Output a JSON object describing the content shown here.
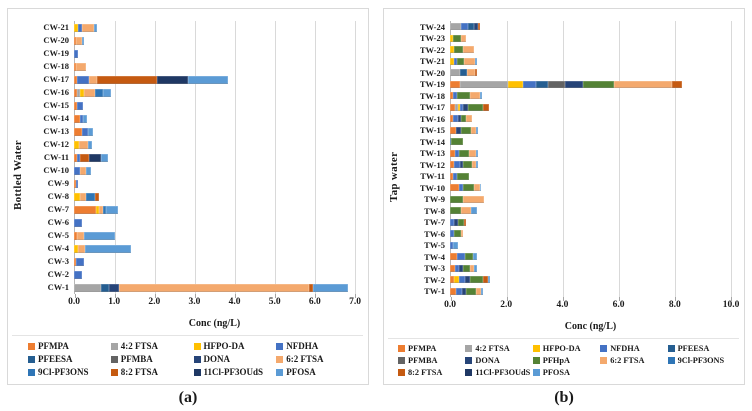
{
  "series_colors": {
    "PFMPA": "#ED7D31",
    "4:2 FTSA": "#A5A5A5",
    "HFPO-DA": "#FFC000",
    "NFDHA": "#4472C4",
    "PFEESA": "#255E91",
    "PFMBA": "#636363",
    "DONA": "#264478",
    "PFHpA": "#548235",
    "6:2 FTSA": "#F4A96D",
    "9Cl-PF3ONS": "#2E75B6",
    "8:2 FTSA": "#C55A11",
    "11Cl-PF3OUdS": "#1F3864",
    "PFOSA": "#5B9BD5"
  },
  "chart_data": [
    {
      "type": "bar",
      "orientation": "horizontal-stacked",
      "caption": "(a)",
      "y_axis_title": "Bottled Water",
      "x_axis_title": "Conc (ng/L)",
      "x_max": 7.0,
      "x_ticks": [
        "0.0",
        "1.0",
        "2.0",
        "3.0",
        "4.0",
        "5.0",
        "6.0",
        "7.0"
      ],
      "grid": "major-vertical",
      "legend_position": "bottom",
      "legend": [
        "PFMPA",
        "4:2 FTSA",
        "HFPO-DA",
        "NFDHA",
        "PFEESA",
        "PFMBA",
        "DONA",
        "6:2 FTSA",
        "9Cl-PF3ONS",
        "8:2 FTSA",
        "11Cl-PF3OUdS",
        "PFOSA"
      ],
      "bars": [
        {
          "label": "CW-21",
          "segments": [
            [
              "HFPO-DA",
              0.1
            ],
            [
              "NFDHA",
              0.1
            ],
            [
              "6:2 FTSA",
              0.3
            ],
            [
              "PFOSA",
              0.07
            ]
          ]
        },
        {
          "label": "CW-20",
          "segments": [
            [
              "PFMPA",
              0.05
            ],
            [
              "6:2 FTSA",
              0.14
            ],
            [
              "PFOSA",
              0.06
            ]
          ]
        },
        {
          "label": "CW-19",
          "segments": [
            [
              "NFDHA",
              0.09
            ]
          ]
        },
        {
          "label": "CW-18",
          "segments": [
            [
              "PFMPA",
              0.05
            ],
            [
              "6:2 FTSA",
              0.25
            ]
          ]
        },
        {
          "label": "CW-17",
          "segments": [
            [
              "PFMPA",
              0.08
            ],
            [
              "NFDHA",
              0.3
            ],
            [
              "6:2 FTSA",
              0.2
            ],
            [
              "8:2 FTSA",
              1.5
            ],
            [
              "11Cl-PF3OUdS",
              0.75
            ],
            [
              "PFOSA",
              1.0
            ]
          ]
        },
        {
          "label": "CW-16",
          "segments": [
            [
              "PFMPA",
              0.07
            ],
            [
              "4:2 FTSA",
              0.07
            ],
            [
              "HFPO-DA",
              0.1
            ],
            [
              "6:2 FTSA",
              0.28
            ],
            [
              "9Cl-PF3ONS",
              0.2
            ],
            [
              "PFOSA",
              0.2
            ]
          ]
        },
        {
          "label": "CW-15",
          "segments": [
            [
              "PFMPA",
              0.08
            ],
            [
              "NFDHA",
              0.15
            ]
          ]
        },
        {
          "label": "CW-14",
          "segments": [
            [
              "PFMPA",
              0.15
            ],
            [
              "NFDHA",
              0.08
            ],
            [
              "PFOSA",
              0.1
            ]
          ]
        },
        {
          "label": "CW-13",
          "segments": [
            [
              "PFMPA",
              0.2
            ],
            [
              "NFDHA",
              0.15
            ],
            [
              "PFOSA",
              0.13
            ]
          ]
        },
        {
          "label": "CW-12",
          "segments": [
            [
              "HFPO-DA",
              0.12
            ],
            [
              "6:2 FTSA",
              0.22
            ],
            [
              "PFOSA",
              0.12
            ]
          ]
        },
        {
          "label": "CW-11",
          "segments": [
            [
              "PFMPA",
              0.08
            ],
            [
              "NFDHA",
              0.08
            ],
            [
              "8:2 FTSA",
              0.22
            ],
            [
              "11Cl-PF3OUdS",
              0.3
            ],
            [
              "PFOSA",
              0.17
            ]
          ]
        },
        {
          "label": "CW-10",
          "segments": [
            [
              "NFDHA",
              0.15
            ],
            [
              "6:2 FTSA",
              0.15
            ],
            [
              "PFOSA",
              0.12
            ]
          ]
        },
        {
          "label": "CW-9",
          "segments": [
            [
              "PFMPA",
              0.05
            ],
            [
              "NFDHA",
              0.04
            ]
          ]
        },
        {
          "label": "CW-8",
          "segments": [
            [
              "HFPO-DA",
              0.15
            ],
            [
              "6:2 FTSA",
              0.15
            ],
            [
              "9Cl-PF3ONS",
              0.22
            ],
            [
              "8:2 FTSA",
              0.1
            ]
          ]
        },
        {
          "label": "CW-7",
          "segments": [
            [
              "PFMPA",
              0.55
            ],
            [
              "HFPO-DA",
              0.07
            ],
            [
              "6:2 FTSA",
              0.1
            ],
            [
              "9Cl-PF3ONS",
              0.08
            ],
            [
              "PFOSA",
              0.3
            ]
          ]
        },
        {
          "label": "CW-6",
          "segments": [
            [
              "NFDHA",
              0.2
            ]
          ]
        },
        {
          "label": "CW-5",
          "segments": [
            [
              "PFMPA",
              0.08
            ],
            [
              "6:2 FTSA",
              0.17
            ],
            [
              "PFOSA",
              0.77
            ]
          ]
        },
        {
          "label": "CW-4",
          "segments": [
            [
              "HFPO-DA",
              0.1
            ],
            [
              "6:2 FTSA",
              0.18
            ],
            [
              "PFOSA",
              1.15
            ]
          ]
        },
        {
          "label": "CW-3",
          "segments": [
            [
              "PFMPA",
              0.06
            ],
            [
              "NFDHA",
              0.2
            ]
          ]
        },
        {
          "label": "CW-2",
          "segments": [
            [
              "NFDHA",
              0.2
            ]
          ]
        },
        {
          "label": "CW-1",
          "segments": [
            [
              "4:2 FTSA",
              0.68
            ],
            [
              "PFEESA",
              0.19
            ],
            [
              "DONA",
              0.26
            ],
            [
              "6:2 FTSA",
              4.72
            ],
            [
              "8:2 FTSA",
              0.1
            ],
            [
              "PFOSA",
              0.87
            ]
          ]
        }
      ]
    },
    {
      "type": "bar",
      "orientation": "horizontal-stacked",
      "caption": "(b)",
      "y_axis_title": "Tap water",
      "x_axis_title": "Conc (ng/L)",
      "x_max": 10.0,
      "x_ticks": [
        "0.0",
        "2.0",
        "4.0",
        "6.0",
        "8.0",
        "10.0"
      ],
      "grid": "major-vertical",
      "legend_position": "bottom",
      "legend": [
        "PFMPA",
        "4:2 FTSA",
        "HFPO-DA",
        "NFDHA",
        "PFEESA",
        "PFMBA",
        "DONA",
        "PFHpA",
        "6:2 FTSA",
        "9Cl-PF3ONS",
        "8:2 FTSA",
        "11Cl-PF3OUdS",
        "PFOSA"
      ],
      "bars": [
        {
          "label": "TW-24",
          "segments": [
            [
              "4:2 FTSA",
              0.4
            ],
            [
              "NFDHA",
              0.25
            ],
            [
              "PFEESA",
              0.22
            ],
            [
              "DONA",
              0.12
            ],
            [
              "8:2 FTSA",
              0.08
            ]
          ]
        },
        {
          "label": "TW-23",
          "segments": [
            [
              "HFPO-DA",
              0.12
            ],
            [
              "PFHpA",
              0.28
            ],
            [
              "6:2 FTSA",
              0.18
            ]
          ]
        },
        {
          "label": "TW-22",
          "segments": [
            [
              "HFPO-DA",
              0.15
            ],
            [
              "PFHpA",
              0.3
            ],
            [
              "6:2 FTSA",
              0.4
            ]
          ]
        },
        {
          "label": "TW-21",
          "segments": [
            [
              "HFPO-DA",
              0.13
            ],
            [
              "NFDHA",
              0.12
            ],
            [
              "PFHpA",
              0.25
            ],
            [
              "6:2 FTSA",
              0.38
            ],
            [
              "PFOSA",
              0.08
            ]
          ]
        },
        {
          "label": "TW-20",
          "segments": [
            [
              "4:2 FTSA",
              0.35
            ],
            [
              "PFEESA",
              0.25
            ],
            [
              "6:2 FTSA",
              0.28
            ],
            [
              "8:2 FTSA",
              0.07
            ]
          ]
        },
        {
          "label": "TW-19",
          "segments": [
            [
              "PFMPA",
              0.35
            ],
            [
              "4:2 FTSA",
              1.7
            ],
            [
              "HFPO-DA",
              0.55
            ],
            [
              "NFDHA",
              0.47
            ],
            [
              "PFEESA",
              0.43
            ],
            [
              "PFMBA",
              0.58
            ],
            [
              "DONA",
              0.65
            ],
            [
              "PFHpA",
              1.12
            ],
            [
              "6:2 FTSA",
              2.05
            ],
            [
              "8:2 FTSA",
              0.37
            ]
          ]
        },
        {
          "label": "TW-18",
          "segments": [
            [
              "PFMPA",
              0.1
            ],
            [
              "NFDHA",
              0.14
            ],
            [
              "PFHpA",
              0.47
            ],
            [
              "6:2 FTSA",
              0.35
            ],
            [
              "PFOSA",
              0.09
            ]
          ]
        },
        {
          "label": "TW-17",
          "segments": [
            [
              "PFMPA",
              0.17
            ],
            [
              "4:2 FTSA",
              0.12
            ],
            [
              "HFPO-DA",
              0.08
            ],
            [
              "NFDHA",
              0.09
            ],
            [
              "DONA",
              0.18
            ],
            [
              "PFHpA",
              0.53
            ],
            [
              "8:2 FTSA",
              0.21
            ]
          ]
        },
        {
          "label": "TW-16",
          "segments": [
            [
              "PFMPA",
              0.1
            ],
            [
              "NFDHA",
              0.17
            ],
            [
              "DONA",
              0.12
            ],
            [
              "PFHpA",
              0.18
            ],
            [
              "6:2 FTSA",
              0.21
            ]
          ]
        },
        {
          "label": "TW-15",
          "segments": [
            [
              "PFMPA",
              0.2
            ],
            [
              "DONA",
              0.2
            ],
            [
              "PFHpA",
              0.35
            ],
            [
              "6:2 FTSA",
              0.18
            ],
            [
              "PFOSA",
              0.07
            ]
          ]
        },
        {
          "label": "TW-14",
          "segments": [
            [
              "PFEESA",
              0.05
            ],
            [
              "PFHpA",
              0.4
            ]
          ]
        },
        {
          "label": "TW-13",
          "segments": [
            [
              "PFMPA",
              0.17
            ],
            [
              "NFDHA",
              0.15
            ],
            [
              "PFHpA",
              0.35
            ],
            [
              "6:2 FTSA",
              0.24
            ],
            [
              "PFOSA",
              0.08
            ]
          ]
        },
        {
          "label": "TW-12",
          "segments": [
            [
              "PFMPA",
              0.13
            ],
            [
              "NFDHA",
              0.21
            ],
            [
              "DONA",
              0.14
            ],
            [
              "PFHpA",
              0.3
            ],
            [
              "6:2 FTSA",
              0.14
            ],
            [
              "PFOSA",
              0.08
            ]
          ]
        },
        {
          "label": "TW-11",
          "segments": [
            [
              "PFMPA",
              0.1
            ],
            [
              "NFDHA",
              0.14
            ],
            [
              "PFHpA",
              0.45
            ]
          ]
        },
        {
          "label": "TW-10",
          "segments": [
            [
              "PFMPA",
              0.32
            ],
            [
              "NFDHA",
              0.14
            ],
            [
              "PFHpA",
              0.4
            ],
            [
              "6:2 FTSA",
              0.2
            ],
            [
              "PFOSA",
              0.06
            ]
          ]
        },
        {
          "label": "TW-9",
          "segments": [
            [
              "PFHpA",
              0.45
            ],
            [
              "6:2 FTSA",
              0.75
            ]
          ]
        },
        {
          "label": "TW-8",
          "segments": [
            [
              "PFHpA",
              0.4
            ],
            [
              "6:2 FTSA",
              0.35
            ],
            [
              "PFOSA",
              0.22
            ]
          ]
        },
        {
          "label": "TW-7",
          "segments": [
            [
              "NFDHA",
              0.15
            ],
            [
              "DONA",
              0.15
            ],
            [
              "PFHpA",
              0.2
            ],
            [
              "8:2 FTSA",
              0.08
            ]
          ]
        },
        {
          "label": "TW-6",
          "segments": [
            [
              "NFDHA",
              0.14
            ],
            [
              "PFHpA",
              0.24
            ],
            [
              "6:2 FTSA",
              0.1
            ]
          ]
        },
        {
          "label": "TW-5",
          "segments": [
            [
              "NFDHA",
              0.1
            ],
            [
              "PFOSA",
              0.2
            ]
          ]
        },
        {
          "label": "TW-4",
          "segments": [
            [
              "PFMPA",
              0.25
            ],
            [
              "NFDHA",
              0.3
            ],
            [
              "PFHpA",
              0.28
            ],
            [
              "PFOSA",
              0.12
            ]
          ]
        },
        {
          "label": "TW-3",
          "segments": [
            [
              "PFMPA",
              0.17
            ],
            [
              "NFDHA",
              0.15
            ],
            [
              "DONA",
              0.14
            ],
            [
              "PFHpA",
              0.26
            ],
            [
              "6:2 FTSA",
              0.15
            ],
            [
              "PFOSA",
              0.08
            ]
          ]
        },
        {
          "label": "TW-2",
          "segments": [
            [
              "PFMPA",
              0.14
            ],
            [
              "HFPO-DA",
              0.18
            ],
            [
              "NFDHA",
              0.2
            ],
            [
              "DONA",
              0.18
            ],
            [
              "PFHpA",
              0.47
            ],
            [
              "8:2 FTSA",
              0.17
            ],
            [
              "PFOSA",
              0.09
            ]
          ]
        },
        {
          "label": "TW-1",
          "segments": [
            [
              "PFMPA",
              0.22
            ],
            [
              "NFDHA",
              0.21
            ],
            [
              "DONA",
              0.14
            ],
            [
              "PFHpA",
              0.35
            ],
            [
              "6:2 FTSA",
              0.18
            ],
            [
              "PFOSA",
              0.08
            ]
          ]
        }
      ]
    }
  ]
}
